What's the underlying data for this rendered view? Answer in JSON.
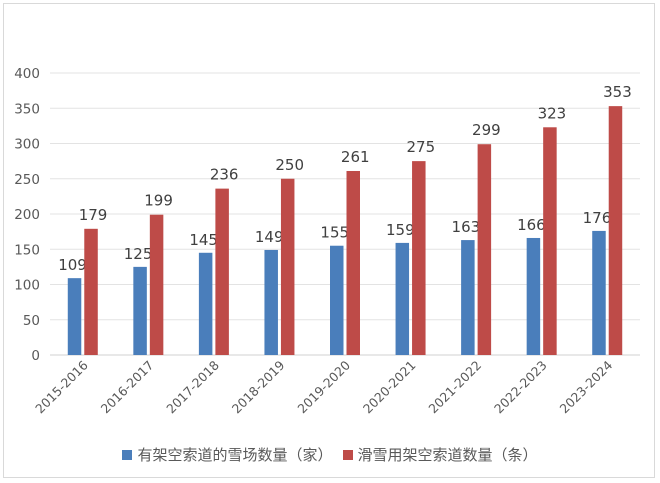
{
  "chart_data": {
    "type": "bar",
    "title": "",
    "xlabel": "",
    "ylabel": "",
    "ylim": [
      0,
      400
    ],
    "yticks": [
      0,
      50,
      100,
      150,
      200,
      250,
      300,
      350,
      400
    ],
    "grid": true,
    "legend_position": "bottom",
    "categories": [
      "2015-2016",
      "2016-2017",
      "2017-2018",
      "2018-2019",
      "2019-2020",
      "2020-2021",
      "2021-2022",
      "2022-2023",
      "2023-2024"
    ],
    "series": [
      {
        "name": "有架空索道的雪场数量（家）",
        "color": "#4a7ebb",
        "values": [
          109,
          125,
          145,
          149,
          155,
          159,
          163,
          166,
          176
        ]
      },
      {
        "name": "滑雪用架空索道数量（条）",
        "color": "#be4b48",
        "values": [
          179,
          199,
          236,
          250,
          261,
          275,
          299,
          323,
          353
        ]
      }
    ]
  },
  "legend": {
    "items": [
      {
        "label": "有架空索道的雪场数量（家）",
        "color": "#4a7ebb"
      },
      {
        "label": "滑雪用架空索道数量（条）",
        "color": "#be4b48"
      }
    ]
  }
}
